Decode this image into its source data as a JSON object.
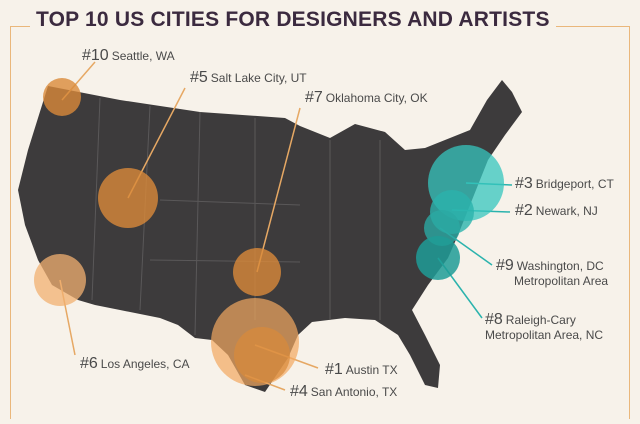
{
  "title": "TOP 10 US CITIES FOR DESIGNERS AND ARTISTS",
  "colors": {
    "map": "#3d3b3c",
    "west": "#d98a3a",
    "east": "#2bb3ad",
    "border": "#eab77b"
  },
  "cities": [
    {
      "rank": "#1",
      "name": "Austin TX"
    },
    {
      "rank": "#2",
      "name": "Newark, NJ"
    },
    {
      "rank": "#3",
      "name": "Bridgeport, CT"
    },
    {
      "rank": "#4",
      "name": "San Antonio, TX"
    },
    {
      "rank": "#5",
      "name": "Salt Lake City, UT"
    },
    {
      "rank": "#6",
      "name": "Los Angeles, CA"
    },
    {
      "rank": "#7",
      "name": "Oklahoma City, OK"
    },
    {
      "rank": "#8",
      "name": "Raleigh-Cary",
      "name2": "Metropolitan Area, NC"
    },
    {
      "rank": "#9",
      "name": "Washington, DC",
      "name2": "Metropolitan Area"
    },
    {
      "rank": "#10",
      "name": "Seattle, WA"
    }
  ]
}
